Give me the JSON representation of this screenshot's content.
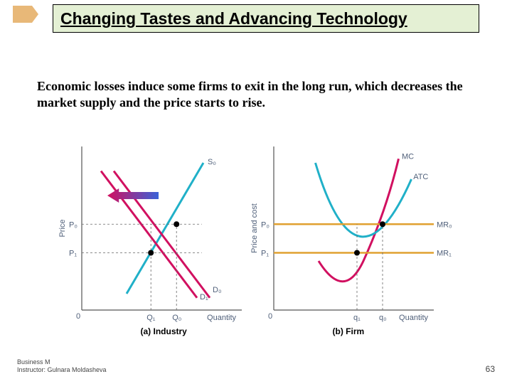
{
  "slide": {
    "title": "Changing Tastes and Advancing Technology",
    "body": "Economic losses induce some firms to exit in the long run, which decreases the market supply and the price starts to rise."
  },
  "footer": {
    "line1": "Business M",
    "line2": "Instructor: Gulnara Moldasheva",
    "page": "63"
  },
  "figure": {
    "type": "two-panel-economics-chart",
    "colors": {
      "axis": "#555555",
      "grid_dash": "#666666",
      "supply_curve": "#20b0c8",
      "demand_d0": "#d11060",
      "demand_d1": "#d11060",
      "mc_curve": "#d11060",
      "atc_curve": "#20b0c8",
      "mr": "#e0a030",
      "gradient_a": "#d11060",
      "gradient_b": "#3a62d8",
      "label_text": "#50607a",
      "dot": "#000000"
    },
    "panel_a": {
      "caption": "(a) Industry",
      "ylabel": "Price",
      "xlabel": "Quantity",
      "x_range": [
        0,
        250
      ],
      "y_range": [
        0,
        200
      ],
      "supply": {
        "label": "S₀",
        "p1": [
          70,
          180
        ],
        "p2": [
          190,
          20
        ]
      },
      "demand0": {
        "label": "D₀",
        "p1": [
          50,
          30
        ],
        "p2": [
          200,
          185
        ]
      },
      "demand1": {
        "label": "D₁",
        "p1": [
          30,
          30
        ],
        "p2": [
          180,
          185
        ]
      },
      "p0": {
        "label": "P₀",
        "y": 95
      },
      "p1": {
        "label": "P₁",
        "y": 130
      },
      "q0": {
        "label": "Q₀",
        "x": 148
      },
      "q1": {
        "label": "Q₁",
        "x": 108
      },
      "eq_points": [
        [
          148,
          95
        ],
        [
          108,
          130
        ]
      ]
    },
    "panel_b": {
      "caption": "(b) Firm",
      "ylabel": "Price and cost",
      "xlabel": "Quantity",
      "x_range": [
        0,
        250
      ],
      "y_range": [
        0,
        200
      ],
      "mc": {
        "label": "MC"
      },
      "atc": {
        "label": "ATC"
      },
      "mr0": {
        "label": "MR₀",
        "y": 95
      },
      "mr1": {
        "label": "MR₁",
        "y": 130
      },
      "p0": {
        "label": "P₀"
      },
      "p1": {
        "label": "P₁"
      },
      "q0": {
        "label": "q₀",
        "x": 170
      },
      "q1": {
        "label": "q₁",
        "x": 130
      },
      "points": [
        [
          170,
          95
        ],
        [
          130,
          130
        ]
      ]
    }
  }
}
